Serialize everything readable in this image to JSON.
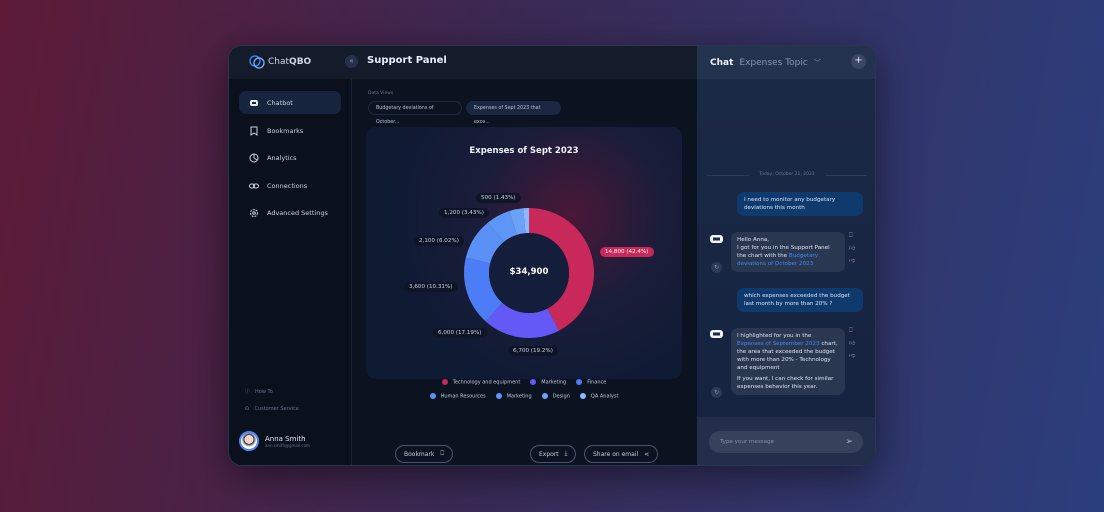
{
  "app": {
    "logo_prefix": "Chat",
    "logo_suffix": "QBO",
    "panel_title": "Support Panel"
  },
  "sidebar": {
    "items": [
      {
        "label": "Chatbot",
        "icon": "robot-icon"
      },
      {
        "label": "Bookmarks",
        "icon": "bookmark-icon"
      },
      {
        "label": "Analytics",
        "icon": "pie-chart-icon"
      },
      {
        "label": "Connections",
        "icon": "link-icon"
      },
      {
        "label": "Advanced Settings",
        "icon": "gear-icon"
      }
    ],
    "footer": [
      {
        "label": "How To",
        "icon": "info-icon"
      },
      {
        "label": "Customer Service",
        "icon": "headset-icon"
      }
    ],
    "user": {
      "name": "Anna Smith",
      "email": "ann.smith@gmail.com"
    }
  },
  "main": {
    "data_views_label": "Data Views",
    "chips": [
      "Budgetary deviations of October...",
      "Expenses of Sept 2023 that exce..."
    ],
    "buttons": {
      "bookmark": "Bookmark",
      "export": "Export",
      "share": "Share on email"
    }
  },
  "chart_data": {
    "type": "pie",
    "title": "Expenses of Sept 2023",
    "center_label": "$34,900",
    "slices": [
      {
        "name": "Technology and equipment",
        "value": 14800,
        "label": "14,800 (42.4%)",
        "color": "#c8285a"
      },
      {
        "name": "Marketing",
        "value": 6700,
        "label": "6,700 (19.2%)",
        "color": "#6459f7"
      },
      {
        "name": "Finance",
        "value": 6000,
        "label": "6,000 (17.19%)",
        "color": "#4c7cf6"
      },
      {
        "name": "Human Resources",
        "value": 3600,
        "label": "3,600 (10.31%)",
        "color": "#5b90f6"
      },
      {
        "name": "Marketing",
        "value": 2100,
        "label": "2,100 (6.02%)",
        "color": "#5e96f8"
      },
      {
        "name": "Design",
        "value": 1200,
        "label": "1,200 (3.43%)",
        "color": "#6aa2fa"
      },
      {
        "name": "QA Analyst",
        "value": 500,
        "label": "500 (1.43%)",
        "color": "#8bb8ff"
      }
    ]
  },
  "chat": {
    "title": "Chat",
    "topic": "Expenses Topic",
    "date": "Today, October 21, 2023",
    "m1": "I need to monitor any budgetary deviations this month",
    "b1_a": "Hello Anna,",
    "b1_b": "I got for you in the Support Panel the chart with the ",
    "b1_link": "Budgetary deviations of October 2023",
    "m2": "which expenses exceeded the budget last month by more than 20% ?",
    "b2_a": "I highlighted for you in the ",
    "b2_link": "Expenses of September 2023",
    "b2_b": " chart, the area that exceeded the budget with more than 20% - Technology and equipment",
    "b2_c": "If you want, I can check for similar expenses behavior this year.",
    "placeholder": "Type your message"
  }
}
